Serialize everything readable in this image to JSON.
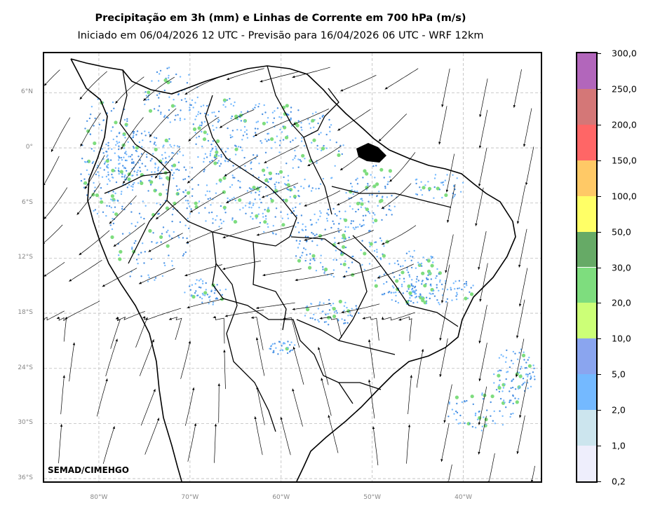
{
  "title": "Precipitação em 3h (mm) e Linhas de Corrente em 700 hPa (m/s)",
  "subtitle": "Iniciado em 06/04/2026 12 UTC - Previsão para 16/04/2026 06 UTC - WRF 12km",
  "credit": "SEMAD/CIMEHGO",
  "lat_labels": [
    "6°N",
    "0°",
    "6°S",
    "12°S",
    "18°S",
    "24°S",
    "30°S",
    "36°S"
  ],
  "lon_labels": [
    "80°W",
    "70°W",
    "60°W",
    "50°W",
    "40°W"
  ],
  "lat_values": [
    6,
    0,
    -6,
    -12,
    -18,
    -24,
    -30,
    -36
  ],
  "lon_values": [
    -80,
    -70,
    -60,
    -50,
    -40
  ],
  "extent": {
    "lon_min": -86,
    "lon_max": -31.5,
    "lat_min": -36.3,
    "lat_max": 10.3
  },
  "colorbar": {
    "labels": [
      "0,2",
      "1,0",
      "2,0",
      "5,0",
      "10,0",
      "20,0",
      "30,0",
      "50,0",
      "100,0",
      "150,0",
      "200,0",
      "250,0",
      "300,0"
    ],
    "colors": [
      "#eeeefc",
      "#cce5ee",
      "#74b9ff",
      "#8aa5ef",
      "#ccff77",
      "#7edd7e",
      "#66aa66",
      "#ffff66",
      "#ffc966",
      "#ff6666",
      "#d47777",
      "#b266bb"
    ]
  },
  "colors": {
    "grid": "#bbbbbb",
    "coast": "#000000",
    "light_rain": "#74b9ff",
    "mid_rain": "#4a90e2",
    "heavy_rain": "#7edd7e"
  }
}
